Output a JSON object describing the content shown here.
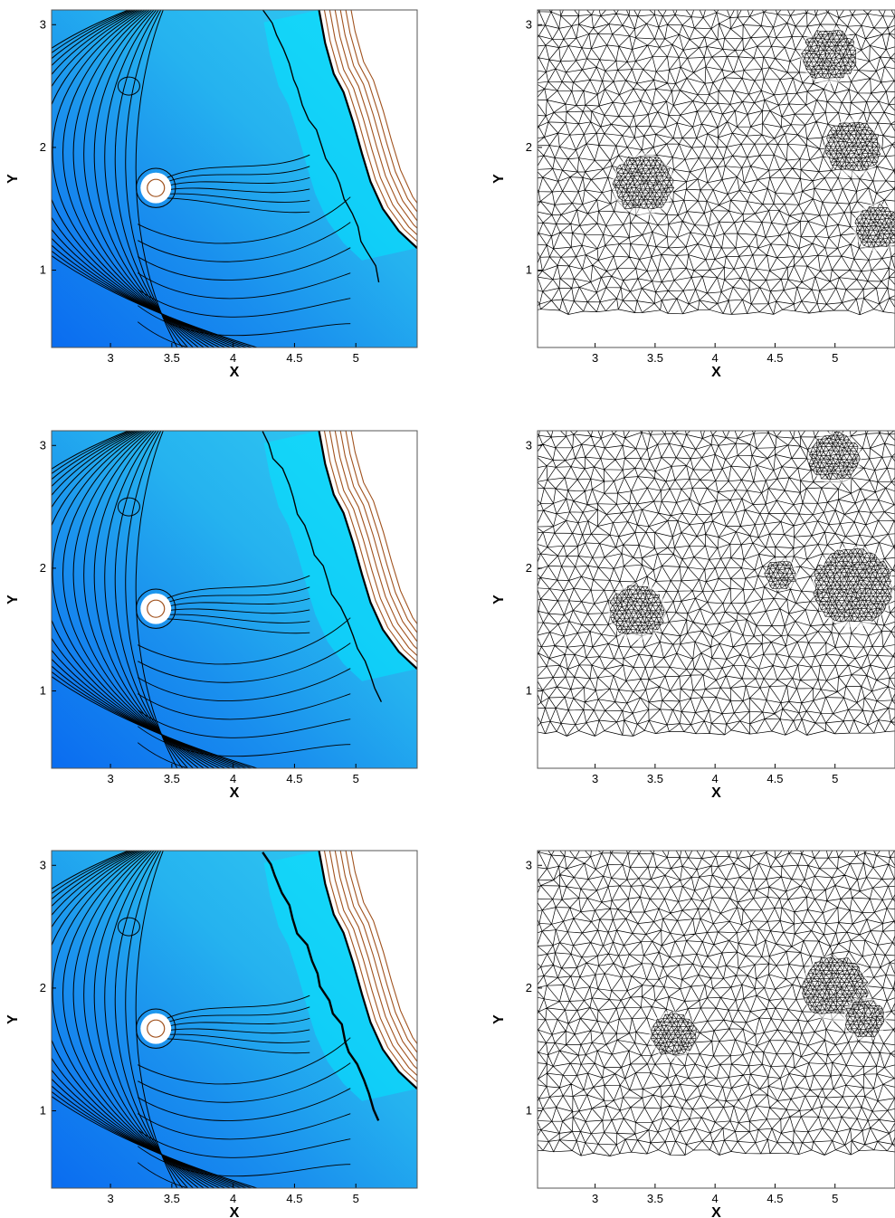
{
  "chart_data": [
    {
      "type": "contour",
      "panel": "solution-contour",
      "row": 1,
      "xlabel": "X",
      "ylabel": "Y",
      "xlim": [
        2.52,
        5.5
      ],
      "ylim": [
        0.37,
        3.12
      ],
      "xticks": [
        3,
        3.5,
        4,
        4.5,
        5
      ],
      "xtick_labels": [
        "3",
        "3.5",
        "4",
        "4.5",
        "5"
      ],
      "yticks": [
        1,
        2,
        3
      ],
      "ytick_labels": [
        "1",
        "2",
        "3"
      ],
      "fill_colors": [
        "#0a6cf0",
        "#1a90ee",
        "#25b2ef",
        "#33cdf2",
        "#00e6ff",
        "#ffffff"
      ],
      "contour_colors": [
        "#000000",
        "#a0521e"
      ],
      "features": {
        "obstacle_center": [
          3.37,
          1.67
        ],
        "obstacle_radius": 0.1,
        "upper_bubble_center": [
          3.15,
          2.5
        ],
        "shock_front": [
          [
            4.7,
            3.12
          ],
          [
            4.75,
            2.85
          ],
          [
            4.82,
            2.6
          ],
          [
            4.9,
            2.45
          ],
          [
            4.98,
            2.2
          ],
          [
            5.05,
            1.95
          ],
          [
            5.12,
            1.72
          ],
          [
            5.22,
            1.5
          ],
          [
            5.35,
            1.32
          ],
          [
            5.5,
            1.18
          ]
        ]
      }
    },
    {
      "type": "mesh",
      "panel": "adapted-mesh",
      "row": 1,
      "xlabel": "X",
      "ylabel": "Y",
      "xlim": [
        2.52,
        5.5
      ],
      "ylim": [
        0.37,
        3.12
      ],
      "xticks": [
        3,
        3.5,
        4,
        4.5,
        5
      ],
      "xtick_labels": [
        "3",
        "3.5",
        "4",
        "4.5",
        "5"
      ],
      "yticks": [
        1,
        2,
        3
      ],
      "ytick_labels": [
        "1",
        "2",
        "3"
      ],
      "refinement_regions": [
        {
          "center": [
            3.4,
            1.7
          ],
          "radius": 0.26
        },
        {
          "center": [
            4.95,
            2.75
          ],
          "radius": 0.24
        },
        {
          "center": [
            5.15,
            2.0
          ],
          "radius": 0.24
        },
        {
          "center": [
            5.35,
            1.35
          ],
          "radius": 0.2
        }
      ]
    },
    {
      "type": "contour",
      "panel": "solution-contour",
      "row": 2,
      "xlabel": "X",
      "ylabel": "Y",
      "xlim": [
        2.52,
        5.5
      ],
      "ylim": [
        0.37,
        3.12
      ],
      "xticks": [
        3,
        3.5,
        4,
        4.5,
        5
      ],
      "xtick_labels": [
        "3",
        "3.5",
        "4",
        "4.5",
        "5"
      ],
      "yticks": [
        1,
        2,
        3
      ],
      "ytick_labels": [
        "1",
        "2",
        "3"
      ],
      "fill_colors": [
        "#0a6cf0",
        "#1a90ee",
        "#25b2ef",
        "#33cdf2",
        "#00e6ff",
        "#ffffff"
      ],
      "contour_colors": [
        "#000000",
        "#a0521e"
      ],
      "features": {
        "obstacle_center": [
          3.37,
          1.67
        ],
        "obstacle_radius": 0.1,
        "upper_bubble_center": [
          3.15,
          2.5
        ],
        "shock_front": [
          [
            4.7,
            3.12
          ],
          [
            4.75,
            2.85
          ],
          [
            4.82,
            2.6
          ],
          [
            4.9,
            2.45
          ],
          [
            4.98,
            2.2
          ],
          [
            5.05,
            1.95
          ],
          [
            5.12,
            1.72
          ],
          [
            5.22,
            1.5
          ],
          [
            5.35,
            1.32
          ],
          [
            5.5,
            1.18
          ]
        ]
      }
    },
    {
      "type": "mesh",
      "panel": "adapted-mesh",
      "row": 2,
      "xlabel": "X",
      "ylabel": "Y",
      "xlim": [
        2.52,
        5.5
      ],
      "ylim": [
        0.37,
        3.12
      ],
      "xticks": [
        3,
        3.5,
        4,
        4.5,
        5
      ],
      "xtick_labels": [
        "3",
        "3.5",
        "4",
        "4.5",
        "5"
      ],
      "yticks": [
        1,
        2,
        3
      ],
      "ytick_labels": [
        "1",
        "2",
        "3"
      ],
      "refinement_regions": [
        {
          "center": [
            3.35,
            1.65
          ],
          "radius": 0.24
        },
        {
          "center": [
            5.0,
            2.9
          ],
          "radius": 0.22
        },
        {
          "center": [
            5.15,
            1.85
          ],
          "radius": 0.34
        },
        {
          "center": [
            4.55,
            1.95
          ],
          "radius": 0.14
        }
      ]
    },
    {
      "type": "contour",
      "panel": "solution-contour",
      "row": 3,
      "xlabel": "X",
      "ylabel": "Y",
      "xlim": [
        2.52,
        5.5
      ],
      "ylim": [
        0.37,
        3.12
      ],
      "xticks": [
        3,
        3.5,
        4,
        4.5,
        5
      ],
      "xtick_labels": [
        "3",
        "3.5",
        "4",
        "4.5",
        "5"
      ],
      "yticks": [
        1,
        2,
        3
      ],
      "ytick_labels": [
        "1",
        "2",
        "3"
      ],
      "fill_colors": [
        "#0a6cf0",
        "#1a90ee",
        "#25b2ef",
        "#33cdf2",
        "#00e6ff",
        "#ffffff"
      ],
      "contour_colors": [
        "#000000",
        "#a0521e"
      ],
      "features": {
        "obstacle_center": [
          3.37,
          1.67
        ],
        "obstacle_radius": 0.1,
        "upper_bubble_center": [
          3.15,
          2.5
        ],
        "shock_front": [
          [
            4.7,
            3.12
          ],
          [
            4.75,
            2.85
          ],
          [
            4.82,
            2.6
          ],
          [
            4.9,
            2.45
          ],
          [
            4.98,
            2.2
          ],
          [
            5.05,
            1.95
          ],
          [
            5.12,
            1.72
          ],
          [
            5.22,
            1.5
          ],
          [
            5.35,
            1.32
          ],
          [
            5.5,
            1.18
          ]
        ]
      }
    },
    {
      "type": "mesh",
      "panel": "adapted-mesh",
      "row": 3,
      "xlabel": "X",
      "ylabel": "Y",
      "xlim": [
        2.52,
        5.5
      ],
      "ylim": [
        0.37,
        3.12
      ],
      "xticks": [
        3,
        3.5,
        4,
        4.5,
        5
      ],
      "xtick_labels": [
        "3",
        "3.5",
        "4",
        "4.5",
        "5"
      ],
      "yticks": [
        1,
        2,
        3
      ],
      "ytick_labels": [
        "1",
        "2",
        "3"
      ],
      "refinement_regions": [
        {
          "center": [
            3.65,
            1.62
          ],
          "radius": 0.2
        },
        {
          "center": [
            5.0,
            2.0
          ],
          "radius": 0.28
        },
        {
          "center": [
            5.25,
            1.75
          ],
          "radius": 0.18
        }
      ]
    }
  ]
}
